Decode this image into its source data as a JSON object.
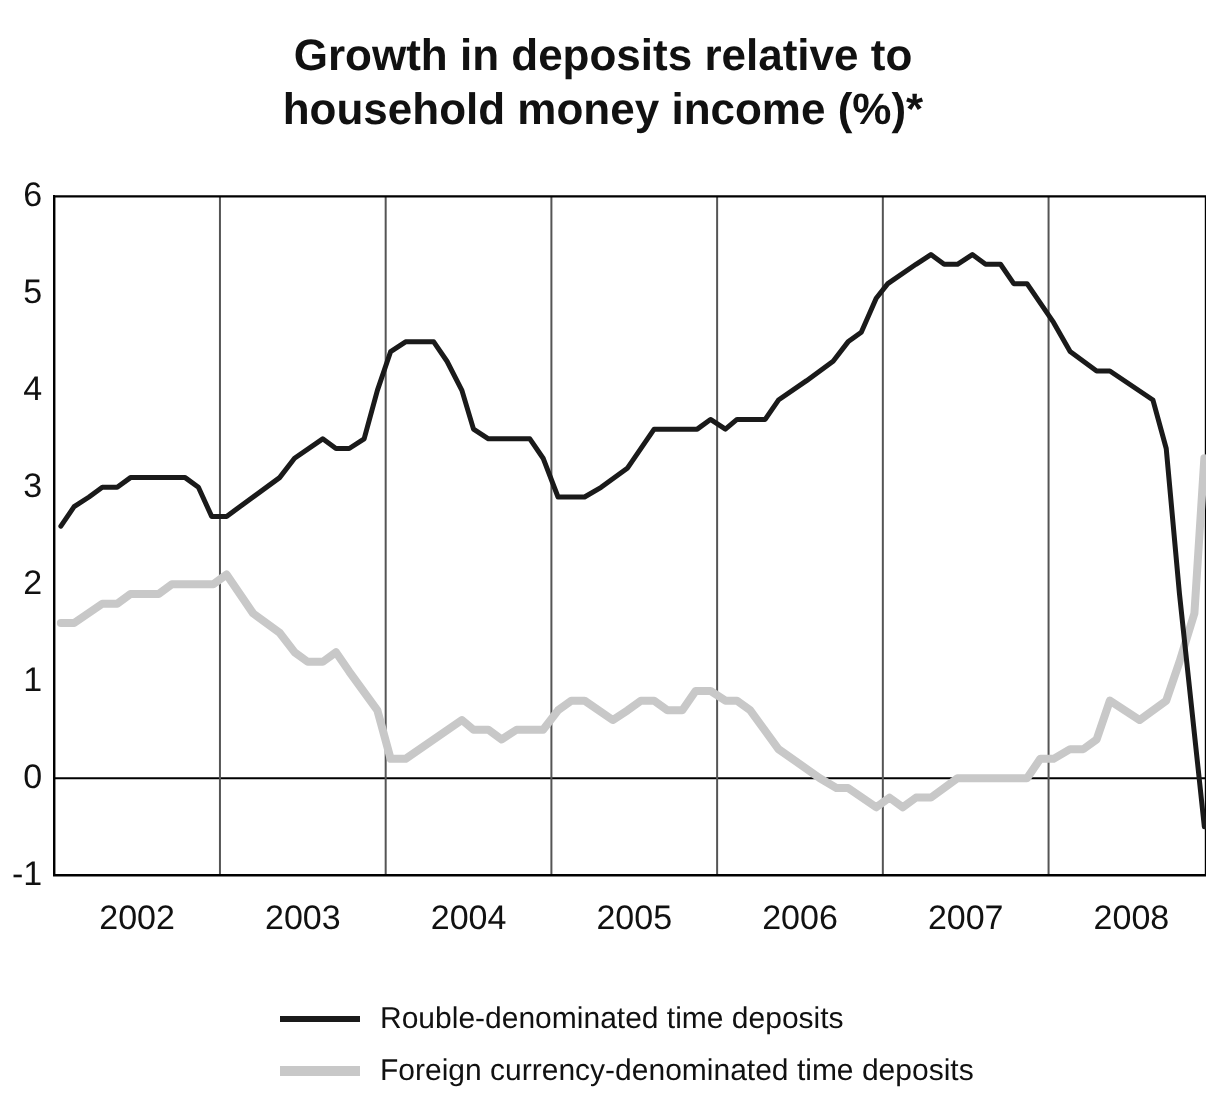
{
  "chart_data": {
    "type": "line",
    "title": "Growth in deposits relative to household money income (%)*",
    "xlim": [
      2002,
      2008.95
    ],
    "xticks": [
      {
        "value": 2002.5,
        "label": "2002"
      },
      {
        "value": 2003.5,
        "label": "2003"
      },
      {
        "value": 2004.5,
        "label": "2004"
      },
      {
        "value": 2005.5,
        "label": "2005"
      },
      {
        "value": 2006.5,
        "label": "2006"
      },
      {
        "value": 2007.5,
        "label": "2007"
      },
      {
        "value": 2008.5,
        "label": "2008"
      }
    ],
    "ylim": [
      -1,
      6
    ],
    "yticks": [
      -1,
      0,
      1,
      2,
      3,
      4,
      5,
      6
    ],
    "grid": false,
    "legend": "bottom",
    "marker": "none",
    "line_style": "solid",
    "ref_lines": [
      {
        "axis": "y",
        "value": 0,
        "color": "#000000"
      },
      {
        "axis": "x",
        "value": 2003,
        "color": "#555555"
      },
      {
        "axis": "x",
        "value": 2004,
        "color": "#555555"
      },
      {
        "axis": "x",
        "value": 2005,
        "color": "#555555"
      },
      {
        "axis": "x",
        "value": 2006,
        "color": "#555555"
      },
      {
        "axis": "x",
        "value": 2007,
        "color": "#555555"
      },
      {
        "axis": "x",
        "value": 2008,
        "color": "#555555"
      }
    ],
    "series": [
      {
        "name": "Rouble-denominated time deposits",
        "color": "#1a1a1a",
        "x": [
          2002.04,
          2002.12,
          2002.21,
          2002.29,
          2002.38,
          2002.46,
          2002.79,
          2002.87,
          2002.95,
          2003.04,
          2003.36,
          2003.45,
          2003.62,
          2003.7,
          2003.78,
          2003.87,
          2003.95,
          2004.03,
          2004.12,
          2004.29,
          2004.37,
          2004.46,
          2004.53,
          2004.62,
          2004.87,
          2004.95,
          2005.04,
          2005.2,
          2005.3,
          2005.46,
          2005.62,
          2005.88,
          2005.96,
          2006.05,
          2006.12,
          2006.29,
          2006.37,
          2006.54,
          2006.7,
          2006.79,
          2006.87,
          2006.96,
          2007.03,
          2007.2,
          2007.29,
          2007.37,
          2007.45,
          2007.54,
          2007.62,
          2007.71,
          2007.79,
          2007.87,
          2008.03,
          2008.13,
          2008.29,
          2008.37,
          2008.63,
          2008.71,
          2008.79,
          2008.94
        ],
        "values": [
          2.6,
          2.8,
          2.9,
          3.0,
          3.0,
          3.1,
          3.1,
          3.0,
          2.7,
          2.7,
          3.1,
          3.3,
          3.5,
          3.4,
          3.4,
          3.5,
          4.0,
          4.4,
          4.5,
          4.5,
          4.3,
          4.0,
          3.6,
          3.5,
          3.5,
          3.3,
          2.9,
          2.9,
          3.0,
          3.2,
          3.6,
          3.6,
          3.7,
          3.6,
          3.7,
          3.7,
          3.9,
          4.1,
          4.3,
          4.5,
          4.6,
          4.95,
          5.1,
          5.3,
          5.4,
          5.3,
          5.3,
          5.4,
          5.3,
          5.3,
          5.1,
          5.1,
          4.7,
          4.4,
          4.2,
          4.2,
          3.9,
          3.4,
          1.9,
          -0.5
        ]
      },
      {
        "name": "Foreign currency-denominated time deposits",
        "color": "#c8c8c8",
        "x": [
          2002.04,
          2002.12,
          2002.29,
          2002.38,
          2002.46,
          2002.63,
          2002.71,
          2002.96,
          2003.04,
          2003.2,
          2003.36,
          2003.45,
          2003.53,
          2003.62,
          2003.7,
          2003.78,
          2003.95,
          2004.03,
          2004.12,
          2004.46,
          2004.53,
          2004.62,
          2004.7,
          2004.79,
          2004.95,
          2005.04,
          2005.12,
          2005.2,
          2005.37,
          2005.46,
          2005.54,
          2005.62,
          2005.7,
          2005.79,
          2005.87,
          2005.96,
          2006.05,
          2006.12,
          2006.2,
          2006.37,
          2006.62,
          2006.72,
          2006.79,
          2006.96,
          2007.04,
          2007.12,
          2007.2,
          2007.29,
          2007.45,
          2007.87,
          2007.95,
          2008.03,
          2008.13,
          2008.21,
          2008.29,
          2008.37,
          2008.55,
          2008.71,
          2008.79,
          2008.88,
          2008.94
        ],
        "values": [
          1.6,
          1.6,
          1.8,
          1.8,
          1.9,
          1.9,
          2.0,
          2.0,
          2.1,
          1.7,
          1.5,
          1.3,
          1.2,
          1.2,
          1.3,
          1.1,
          0.7,
          0.2,
          0.2,
          0.6,
          0.5,
          0.5,
          0.4,
          0.5,
          0.5,
          0.7,
          0.8,
          0.8,
          0.6,
          0.7,
          0.8,
          0.8,
          0.7,
          0.7,
          0.9,
          0.9,
          0.8,
          0.8,
          0.7,
          0.3,
          0.0,
          -0.1,
          -0.1,
          -0.3,
          -0.2,
          -0.3,
          -0.2,
          -0.2,
          0.0,
          0.0,
          0.2,
          0.2,
          0.3,
          0.3,
          0.4,
          0.8,
          0.6,
          0.8,
          1.2,
          1.7,
          3.3
        ]
      }
    ]
  }
}
